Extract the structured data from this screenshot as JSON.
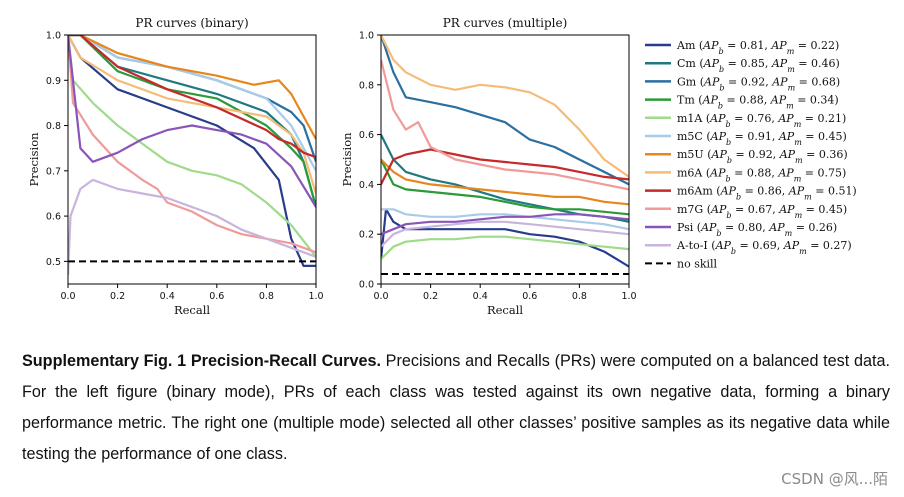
{
  "chart_data": [
    {
      "type": "line",
      "title": "PR curves (binary)",
      "xlabel": "Recall",
      "ylabel": "Precision",
      "xlim": [
        0.0,
        1.0
      ],
      "ylim": [
        0.45,
        1.0
      ],
      "xticks": [
        "0.0",
        "0.2",
        "0.4",
        "0.6",
        "0.8",
        "1.0"
      ],
      "yticks": [
        "0.5",
        "0.6",
        "0.7",
        "0.8",
        "0.9",
        "1.0"
      ],
      "no_skill": 0.5,
      "series": [
        {
          "name": "Am",
          "color": "#283c8c",
          "x": [
            0,
            0.05,
            0.2,
            0.4,
            0.6,
            0.75,
            0.85,
            0.9,
            0.95,
            1.0
          ],
          "y": [
            1,
            0.95,
            0.88,
            0.84,
            0.8,
            0.75,
            0.68,
            0.55,
            0.49,
            0.49
          ]
        },
        {
          "name": "Cm",
          "color": "#1f7a80",
          "x": [
            0,
            0.05,
            0.2,
            0.4,
            0.6,
            0.8,
            0.9,
            0.95,
            1.0
          ],
          "y": [
            1,
            1,
            0.93,
            0.9,
            0.87,
            0.83,
            0.78,
            0.72,
            0.62
          ]
        },
        {
          "name": "Gm",
          "color": "#2a6fa0",
          "x": [
            0,
            0.05,
            0.2,
            0.4,
            0.6,
            0.8,
            0.9,
            0.95,
            1.0
          ],
          "y": [
            1,
            1,
            0.95,
            0.93,
            0.9,
            0.86,
            0.83,
            0.8,
            0.72
          ]
        },
        {
          "name": "Tm",
          "color": "#2a9a3a",
          "x": [
            0,
            0.05,
            0.2,
            0.4,
            0.6,
            0.8,
            0.9,
            0.95,
            1.0
          ],
          "y": [
            1,
            1,
            0.92,
            0.88,
            0.86,
            0.8,
            0.75,
            0.72,
            0.62
          ]
        },
        {
          "name": "m1A",
          "color": "#9fdb8a",
          "x": [
            0,
            0.02,
            0.1,
            0.2,
            0.3,
            0.4,
            0.5,
            0.6,
            0.7,
            0.8,
            0.9,
            1.0
          ],
          "y": [
            1,
            0.9,
            0.85,
            0.8,
            0.76,
            0.72,
            0.7,
            0.69,
            0.67,
            0.63,
            0.58,
            0.51
          ]
        },
        {
          "name": "m5C",
          "color": "#a8cce8",
          "x": [
            0,
            0.05,
            0.2,
            0.4,
            0.6,
            0.7,
            0.8,
            0.9,
            1.0
          ],
          "y": [
            1,
            1,
            0.95,
            0.93,
            0.9,
            0.88,
            0.86,
            0.8,
            0.7
          ]
        },
        {
          "name": "m5U",
          "color": "#e8861e",
          "x": [
            0,
            0.05,
            0.2,
            0.4,
            0.6,
            0.75,
            0.85,
            0.9,
            0.95,
            1.0
          ],
          "y": [
            1,
            1,
            0.96,
            0.93,
            0.91,
            0.89,
            0.9,
            0.87,
            0.82,
            0.77
          ]
        },
        {
          "name": "m6A",
          "color": "#f4bc78",
          "x": [
            0,
            0.05,
            0.2,
            0.4,
            0.6,
            0.8,
            0.9,
            0.95,
            1.0
          ],
          "y": [
            1,
            0.95,
            0.9,
            0.86,
            0.84,
            0.82,
            0.78,
            0.74,
            0.65
          ]
        },
        {
          "name": "m6Am",
          "color": "#c42a2a",
          "x": [
            0,
            0.05,
            0.2,
            0.4,
            0.6,
            0.8,
            0.85,
            0.9,
            0.95,
            1.0
          ],
          "y": [
            1,
            1,
            0.93,
            0.88,
            0.84,
            0.79,
            0.77,
            0.76,
            0.74,
            0.73
          ]
        },
        {
          "name": "m7G",
          "color": "#f09a9a",
          "x": [
            0,
            0.02,
            0.1,
            0.2,
            0.3,
            0.36,
            0.4,
            0.5,
            0.6,
            0.7,
            0.8,
            0.9,
            1.0
          ],
          "y": [
            1,
            0.85,
            0.78,
            0.72,
            0.68,
            0.66,
            0.63,
            0.61,
            0.58,
            0.56,
            0.55,
            0.54,
            0.52
          ]
        },
        {
          "name": "Psi",
          "color": "#8a55b8",
          "x": [
            0,
            0.05,
            0.1,
            0.2,
            0.3,
            0.4,
            0.5,
            0.6,
            0.7,
            0.8,
            0.9,
            1.0
          ],
          "y": [
            1,
            0.75,
            0.72,
            0.74,
            0.77,
            0.79,
            0.8,
            0.79,
            0.78,
            0.76,
            0.71,
            0.62
          ]
        },
        {
          "name": "A-to-I",
          "color": "#c8b4dc",
          "x": [
            0,
            0.01,
            0.05,
            0.1,
            0.2,
            0.3,
            0.4,
            0.5,
            0.6,
            0.7,
            0.8,
            0.9,
            1.0
          ],
          "y": [
            0.47,
            0.6,
            0.66,
            0.68,
            0.66,
            0.65,
            0.64,
            0.62,
            0.6,
            0.57,
            0.55,
            0.53,
            0.51
          ]
        }
      ]
    },
    {
      "type": "line",
      "title": "PR curves (multiple)",
      "xlabel": "Recall",
      "ylabel": "Precision",
      "xlim": [
        0.0,
        1.0
      ],
      "ylim": [
        0.0,
        1.0
      ],
      "xticks": [
        "0.0",
        "0.2",
        "0.4",
        "0.6",
        "0.8",
        "1.0"
      ],
      "yticks": [
        "0.0",
        "0.2",
        "0.4",
        "0.6",
        "0.8",
        "1.0"
      ],
      "no_skill": 0.04,
      "series": [
        {
          "name": "Am",
          "color": "#283c8c",
          "x": [
            0,
            0.02,
            0.05,
            0.1,
            0.2,
            0.3,
            0.4,
            0.5,
            0.6,
            0.7,
            0.8,
            0.9,
            0.95,
            1.0
          ],
          "y": [
            0.1,
            0.3,
            0.25,
            0.22,
            0.22,
            0.22,
            0.22,
            0.22,
            0.2,
            0.19,
            0.17,
            0.13,
            0.1,
            0.07
          ]
        },
        {
          "name": "Cm",
          "color": "#1f7a80",
          "x": [
            0,
            0.05,
            0.1,
            0.2,
            0.3,
            0.4,
            0.5,
            0.6,
            0.7,
            0.8,
            0.9,
            1.0
          ],
          "y": [
            0.6,
            0.5,
            0.45,
            0.42,
            0.4,
            0.37,
            0.34,
            0.32,
            0.3,
            0.28,
            0.27,
            0.25
          ]
        },
        {
          "name": "Gm",
          "color": "#2a6fa0",
          "x": [
            0,
            0.05,
            0.1,
            0.2,
            0.3,
            0.4,
            0.5,
            0.6,
            0.7,
            0.8,
            0.9,
            1.0
          ],
          "y": [
            1,
            0.85,
            0.75,
            0.73,
            0.71,
            0.68,
            0.65,
            0.58,
            0.55,
            0.5,
            0.45,
            0.4
          ]
        },
        {
          "name": "Tm",
          "color": "#2a9a3a",
          "x": [
            0,
            0.05,
            0.1,
            0.2,
            0.3,
            0.4,
            0.5,
            0.6,
            0.7,
            0.8,
            0.9,
            1.0
          ],
          "y": [
            0.5,
            0.4,
            0.38,
            0.37,
            0.36,
            0.35,
            0.33,
            0.31,
            0.3,
            0.3,
            0.29,
            0.28
          ]
        },
        {
          "name": "m1A",
          "color": "#9fdb8a",
          "x": [
            0,
            0.05,
            0.1,
            0.2,
            0.3,
            0.4,
            0.5,
            0.6,
            0.7,
            0.8,
            0.9,
            1.0
          ],
          "y": [
            0.1,
            0.15,
            0.17,
            0.18,
            0.18,
            0.19,
            0.19,
            0.18,
            0.17,
            0.16,
            0.15,
            0.14
          ]
        },
        {
          "name": "m5C",
          "color": "#a8cce8",
          "x": [
            0,
            0.05,
            0.1,
            0.2,
            0.3,
            0.4,
            0.5,
            0.6,
            0.7,
            0.8,
            0.9,
            1.0
          ],
          "y": [
            0.3,
            0.3,
            0.28,
            0.27,
            0.27,
            0.28,
            0.28,
            0.27,
            0.26,
            0.25,
            0.24,
            0.22
          ]
        },
        {
          "name": "m5U",
          "color": "#e8861e",
          "x": [
            0,
            0.05,
            0.1,
            0.2,
            0.3,
            0.4,
            0.5,
            0.6,
            0.7,
            0.8,
            0.9,
            1.0
          ],
          "y": [
            0.5,
            0.45,
            0.42,
            0.4,
            0.39,
            0.38,
            0.37,
            0.36,
            0.35,
            0.35,
            0.33,
            0.32
          ]
        },
        {
          "name": "m6A",
          "color": "#f4bc78",
          "x": [
            0,
            0.05,
            0.1,
            0.2,
            0.3,
            0.4,
            0.5,
            0.6,
            0.7,
            0.8,
            0.9,
            1.0
          ],
          "y": [
            1,
            0.9,
            0.85,
            0.8,
            0.78,
            0.8,
            0.79,
            0.77,
            0.72,
            0.62,
            0.5,
            0.43
          ]
        },
        {
          "name": "m6Am",
          "color": "#c42a2a",
          "x": [
            0,
            0.05,
            0.1,
            0.2,
            0.3,
            0.4,
            0.5,
            0.6,
            0.7,
            0.8,
            0.9,
            1.0
          ],
          "y": [
            0.4,
            0.5,
            0.52,
            0.54,
            0.52,
            0.5,
            0.49,
            0.48,
            0.47,
            0.45,
            0.43,
            0.42
          ]
        },
        {
          "name": "m7G",
          "color": "#f09a9a",
          "x": [
            0,
            0.05,
            0.1,
            0.15,
            0.2,
            0.3,
            0.4,
            0.5,
            0.6,
            0.7,
            0.8,
            0.9,
            1.0
          ],
          "y": [
            0.9,
            0.7,
            0.62,
            0.65,
            0.55,
            0.5,
            0.48,
            0.46,
            0.45,
            0.44,
            0.42,
            0.4,
            0.38
          ]
        },
        {
          "name": "Psi",
          "color": "#8a55b8",
          "x": [
            0,
            0.05,
            0.1,
            0.2,
            0.3,
            0.4,
            0.5,
            0.6,
            0.7,
            0.8,
            0.9,
            1.0
          ],
          "y": [
            0.2,
            0.22,
            0.24,
            0.25,
            0.25,
            0.26,
            0.27,
            0.27,
            0.28,
            0.28,
            0.27,
            0.26
          ]
        },
        {
          "name": "A-to-I",
          "color": "#c8b4dc",
          "x": [
            0,
            0.05,
            0.1,
            0.2,
            0.3,
            0.4,
            0.5,
            0.6,
            0.7,
            0.8,
            0.9,
            1.0
          ],
          "y": [
            0.15,
            0.2,
            0.22,
            0.23,
            0.24,
            0.25,
            0.25,
            0.24,
            0.23,
            0.22,
            0.21,
            0.2
          ]
        }
      ]
    }
  ],
  "legend": {
    "entries": [
      {
        "name": "Am",
        "apb": "0.81",
        "apm": "0.22",
        "color": "#283c8c"
      },
      {
        "name": "Cm",
        "apb": "0.85",
        "apm": "0.46",
        "color": "#1f7a80"
      },
      {
        "name": "Gm",
        "apb": "0.92",
        "apm": "0.68",
        "color": "#2a6fa0"
      },
      {
        "name": "Tm",
        "apb": "0.88",
        "apm": "0.34",
        "color": "#2a9a3a"
      },
      {
        "name": "m1A",
        "apb": "0.76",
        "apm": "0.21",
        "color": "#9fdb8a"
      },
      {
        "name": "m5C",
        "apb": "0.91",
        "apm": "0.45",
        "color": "#a8cce8"
      },
      {
        "name": "m5U",
        "apb": "0.92",
        "apm": "0.36",
        "color": "#e8861e"
      },
      {
        "name": "m6A",
        "apb": "0.88",
        "apm": "0.75",
        "color": "#f4bc78"
      },
      {
        "name": "m6Am",
        "apb": "0.86",
        "apm": "0.51",
        "color": "#c42a2a"
      },
      {
        "name": "m7G",
        "apb": "0.67",
        "apm": "0.45",
        "color": "#f09a9a"
      },
      {
        "name": "Psi",
        "apb": "0.80",
        "apm": "0.26",
        "color": "#8a55b8"
      },
      {
        "name": "A-to-I",
        "apb": "0.69",
        "apm": "0.27",
        "color": "#c8b4dc"
      }
    ],
    "no_skill_label": "no skill",
    "ap_symbol": "AP",
    "sub_binary": "b",
    "sub_multiple": "m"
  },
  "caption": {
    "bold": "Supplementary Fig. 1 Precision-Recall Curves.",
    "text": " Precisions and Recalls (PRs) were computed on a balanced test data. For the left figure (binary mode), PRs of each class was tested against its own negative data, forming a binary performance metric. The right one (multiple mode) selected all other classes’ positive samples as its negative data while testing the performance of one class."
  },
  "watermark": "CSDN @风...陌"
}
